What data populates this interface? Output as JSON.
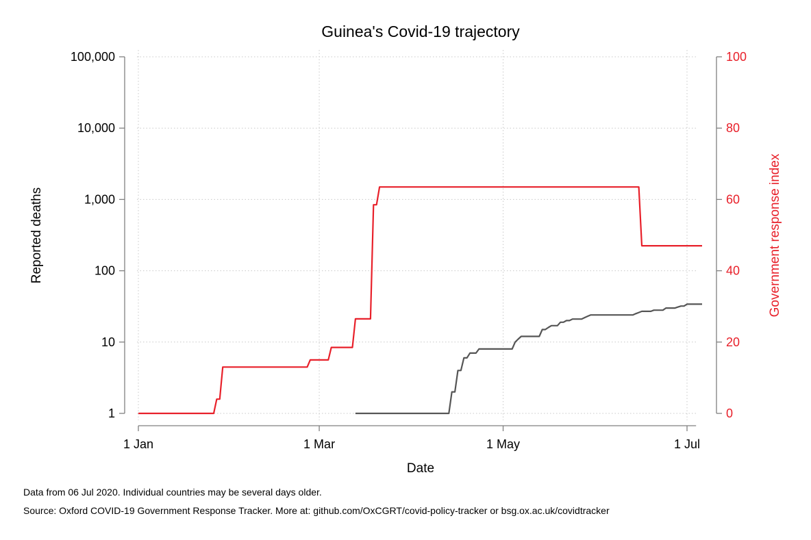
{
  "chart_data": {
    "type": "line",
    "title": "Guinea's Covid-19 trajectory",
    "xlabel": "Date",
    "ylabel_left": "Reported deaths",
    "ylabel_right": "Government response index",
    "x_range": [
      "2020-01-01",
      "2020-07-04"
    ],
    "x_ticks": [
      {
        "date": "2020-01-01",
        "label": "1 Jan"
      },
      {
        "date": "2020-03-01",
        "label": "1 Mar"
      },
      {
        "date": "2020-05-01",
        "label": "1 May"
      },
      {
        "date": "2020-07-01",
        "label": "1 Jul"
      }
    ],
    "y_left": {
      "scale": "log",
      "range": [
        1,
        100000
      ],
      "ticks": [
        {
          "value": 1,
          "label": "1"
        },
        {
          "value": 10,
          "label": "10"
        },
        {
          "value": 100,
          "label": "100"
        },
        {
          "value": 1000,
          "label": "1,000"
        },
        {
          "value": 10000,
          "label": "10,000"
        },
        {
          "value": 100000,
          "label": "100,000"
        }
      ]
    },
    "y_right": {
      "scale": "linear",
      "range": [
        0,
        100
      ],
      "ticks": [
        {
          "value": 0,
          "label": "0"
        },
        {
          "value": 20,
          "label": "20"
        },
        {
          "value": 40,
          "label": "40"
        },
        {
          "value": 60,
          "label": "60"
        },
        {
          "value": 80,
          "label": "80"
        },
        {
          "value": 100,
          "label": "100"
        }
      ],
      "color": "#e8202a"
    },
    "grid": true,
    "series": [
      {
        "name": "Reported deaths",
        "axis": "left",
        "color": "#555555",
        "points": [
          [
            "2020-03-13",
            1
          ],
          [
            "2020-04-13",
            1
          ],
          [
            "2020-04-14",
            2
          ],
          [
            "2020-04-15",
            2
          ],
          [
            "2020-04-16",
            4
          ],
          [
            "2020-04-17",
            4
          ],
          [
            "2020-04-18",
            6
          ],
          [
            "2020-04-19",
            6
          ],
          [
            "2020-04-20",
            7
          ],
          [
            "2020-04-22",
            7
          ],
          [
            "2020-04-23",
            8
          ],
          [
            "2020-05-04",
            8
          ],
          [
            "2020-05-05",
            10
          ],
          [
            "2020-05-06",
            11
          ],
          [
            "2020-05-07",
            12
          ],
          [
            "2020-05-13",
            12
          ],
          [
            "2020-05-14",
            15
          ],
          [
            "2020-05-15",
            15
          ],
          [
            "2020-05-16",
            16
          ],
          [
            "2020-05-17",
            17
          ],
          [
            "2020-05-19",
            17
          ],
          [
            "2020-05-20",
            19
          ],
          [
            "2020-05-21",
            19
          ],
          [
            "2020-05-22",
            20
          ],
          [
            "2020-05-23",
            20
          ],
          [
            "2020-05-24",
            21
          ],
          [
            "2020-05-27",
            21
          ],
          [
            "2020-05-28",
            22
          ],
          [
            "2020-05-29",
            23
          ],
          [
            "2020-05-30",
            24
          ],
          [
            "2020-06-13",
            24
          ],
          [
            "2020-06-14",
            25
          ],
          [
            "2020-06-15",
            26
          ],
          [
            "2020-06-16",
            27
          ],
          [
            "2020-06-19",
            27
          ],
          [
            "2020-06-20",
            28
          ],
          [
            "2020-06-23",
            28
          ],
          [
            "2020-06-24",
            30
          ],
          [
            "2020-06-27",
            30
          ],
          [
            "2020-06-28",
            31
          ],
          [
            "2020-06-29",
            32
          ],
          [
            "2020-06-30",
            32
          ],
          [
            "2020-07-01",
            34
          ],
          [
            "2020-07-06",
            34
          ]
        ]
      },
      {
        "name": "Government response index",
        "axis": "right",
        "color": "#e8202a",
        "points": [
          [
            "2020-01-01",
            0
          ],
          [
            "2020-01-26",
            0
          ],
          [
            "2020-01-27",
            4
          ],
          [
            "2020-01-28",
            4
          ],
          [
            "2020-01-29",
            13
          ],
          [
            "2020-02-26",
            13
          ],
          [
            "2020-02-27",
            15
          ],
          [
            "2020-03-04",
            15
          ],
          [
            "2020-03-05",
            18.5
          ],
          [
            "2020-03-12",
            18.5
          ],
          [
            "2020-03-13",
            26.5
          ],
          [
            "2020-03-18",
            26.5
          ],
          [
            "2020-03-19",
            58.5
          ],
          [
            "2020-03-20",
            58.5
          ],
          [
            "2020-03-21",
            63.5
          ],
          [
            "2020-06-15",
            63.5
          ],
          [
            "2020-06-16",
            47
          ],
          [
            "2020-07-06",
            47
          ]
        ]
      }
    ]
  },
  "footer": {
    "note": "Data from 06 Jul 2020. Individual countries may be several days older.",
    "source": "Source: Oxford COVID-19 Government Response Tracker. More at: github.com/OxCGRT/covid-policy-tracker or bsg.ox.ac.uk/covidtracker"
  }
}
